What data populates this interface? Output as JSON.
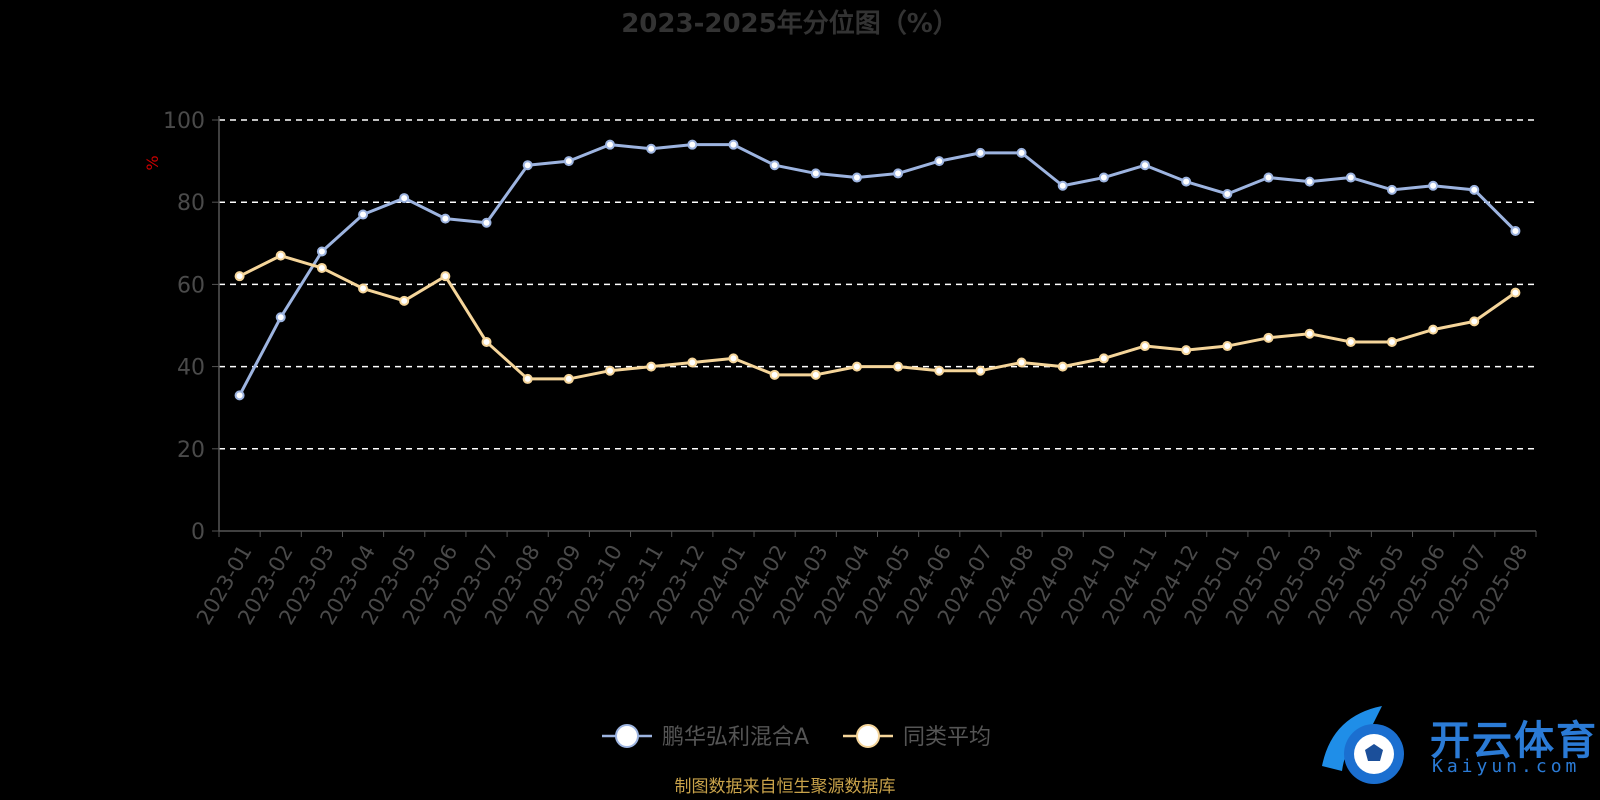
{
  "chart_data": {
    "type": "line",
    "title": "2023-2025年分位图（%）",
    "ylabel": "%",
    "ylim": [
      0,
      100
    ],
    "yticks": [
      "0",
      "20",
      "40",
      "60",
      "80",
      "100"
    ],
    "grid": true,
    "legend_placement": "bottom-center",
    "categories": [
      "2023-01",
      "2023-02",
      "2023-03",
      "2023-04",
      "2023-05",
      "2023-06",
      "2023-07",
      "2023-08",
      "2023-09",
      "2023-10",
      "2023-11",
      "2023-12",
      "2024-01",
      "2024-02",
      "2024-03",
      "2024-04",
      "2024-05",
      "2024-06",
      "2024-07",
      "2024-08",
      "2024-09",
      "2024-10",
      "2024-11",
      "2024-12",
      "2025-01",
      "2025-02",
      "2025-03",
      "2025-04",
      "2025-05",
      "2025-06",
      "2025-07",
      "2025-08"
    ],
    "series": [
      {
        "name": "鹏华弘利混合A",
        "color": "#9db4e0",
        "values": [
          33,
          52,
          68,
          77,
          81,
          76,
          75,
          89,
          90,
          94,
          93,
          94,
          94,
          89,
          87,
          86,
          87,
          90,
          92,
          92,
          84,
          86,
          89,
          85,
          82,
          86,
          85,
          86,
          83,
          84,
          83,
          73
        ]
      },
      {
        "name": "同类平均",
        "color": "#f5d59a",
        "values": [
          62,
          67,
          64,
          59,
          56,
          62,
          46,
          37,
          37,
          39,
          40,
          41,
          42,
          38,
          38,
          40,
          40,
          39,
          39,
          41,
          40,
          42,
          45,
          44,
          45,
          47,
          48,
          46,
          46,
          49,
          51,
          58
        ]
      }
    ],
    "source_note": "制图数据来自恒生聚源数据库"
  },
  "watermark": {
    "text": "开云体育",
    "sub": "Kaiyun.com",
    "icon": "soccer-ball-icon"
  }
}
